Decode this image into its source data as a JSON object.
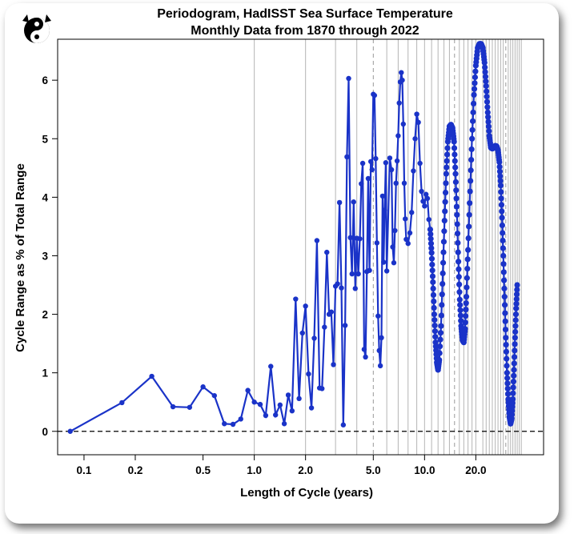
{
  "chart_data": {
    "type": "line",
    "title": "Periodogram, HadISST Sea Surface Temperature",
    "subtitle": "Monthly Data from 1870 through 2022",
    "xlabel": "Length of Cycle (years)",
    "ylabel": "Cycle Range as % of Total Range",
    "x_scale": "log",
    "xlim": [
      0.07,
      50
    ],
    "ylim": [
      -0.4,
      6.7
    ],
    "x_ticks": [
      0.1,
      0.2,
      0.5,
      1.0,
      2.0,
      5.0,
      10.0,
      20.0
    ],
    "x_tick_labels": [
      "0.1",
      "0.2",
      "0.5",
      "1.0",
      "2.0",
      "5.0",
      "10.0",
      "20.0"
    ],
    "y_ticks": [
      0,
      1,
      2,
      3,
      4,
      5,
      6
    ],
    "y_tick_labels": [
      "0",
      "1",
      "2",
      "3",
      "4",
      "5",
      "6"
    ],
    "reference_line_y": 0,
    "color": "#1a33c8",
    "series": [
      {
        "low_period_points": [
          [
            0.083,
            0.0
          ],
          [
            0.167,
            0.49
          ],
          [
            0.25,
            0.94
          ],
          [
            0.333,
            0.42
          ],
          [
            0.417,
            0.41
          ],
          [
            0.5,
            0.76
          ],
          [
            0.583,
            0.61
          ],
          [
            0.667,
            0.13
          ],
          [
            0.75,
            0.12
          ],
          [
            0.833,
            0.21
          ],
          [
            0.917,
            0.7
          ],
          [
            1.0,
            0.5
          ],
          [
            1.083,
            0.46
          ],
          [
            1.167,
            0.27
          ],
          [
            1.25,
            1.11
          ],
          [
            1.333,
            0.28
          ],
          [
            1.417,
            0.45
          ],
          [
            1.5,
            0.13
          ],
          [
            1.583,
            0.62
          ],
          [
            1.667,
            0.35
          ],
          [
            1.75,
            2.26
          ],
          [
            1.833,
            0.56
          ],
          [
            1.917,
            1.68
          ],
          [
            2.0,
            2.14
          ],
          [
            2.083,
            0.98
          ],
          [
            2.167,
            0.4
          ],
          [
            2.25,
            1.59
          ],
          [
            2.333,
            3.26
          ],
          [
            2.417,
            0.74
          ],
          [
            2.5,
            0.73
          ],
          [
            2.583,
            1.78
          ],
          [
            2.667,
            3.06
          ],
          [
            2.75,
            2.0
          ],
          [
            2.833,
            2.04
          ],
          [
            2.917,
            1.14
          ],
          [
            3.0,
            2.48
          ],
          [
            3.083,
            2.52
          ],
          [
            3.167,
            3.91
          ],
          [
            3.25,
            2.45
          ],
          [
            3.333,
            0.11
          ],
          [
            3.417,
            1.81
          ],
          [
            3.5,
            4.69
          ],
          [
            3.583,
            6.03
          ],
          [
            3.667,
            3.31
          ],
          [
            3.75,
            2.69
          ],
          [
            3.833,
            3.92
          ],
          [
            3.917,
            2.44
          ],
          [
            4.0,
            3.3
          ],
          [
            4.083,
            2.69
          ],
          [
            4.167,
            3.29
          ],
          [
            4.25,
            4.23
          ],
          [
            4.333,
            4.58
          ],
          [
            4.417,
            1.4
          ],
          [
            4.5,
            1.27
          ],
          [
            4.583,
            2.73
          ],
          [
            4.667,
            4.32
          ],
          [
            4.75,
            2.75
          ],
          [
            4.833,
            4.61
          ],
          [
            4.917,
            4.47
          ],
          [
            5.0,
            5.76
          ],
          [
            5.083,
            5.74
          ],
          [
            5.167,
            4.66
          ],
          [
            5.25,
            3.22
          ],
          [
            5.333,
            1.97
          ],
          [
            5.417,
            1.38
          ],
          [
            5.5,
            1.12
          ],
          [
            5.583,
            1.6
          ],
          [
            5.667,
            4.02
          ],
          [
            5.75,
            2.89
          ],
          [
            5.833,
            3.78
          ],
          [
            5.917,
            4.59
          ],
          [
            6.0,
            2.74
          ],
          [
            6.25,
            4.67
          ],
          [
            6.4,
            4.47
          ],
          [
            6.5,
            3.15
          ],
          [
            6.6,
            2.88
          ],
          [
            6.7,
            3.43
          ],
          [
            6.8,
            4.24
          ],
          [
            6.9,
            4.62
          ],
          [
            7.0,
            5.05
          ],
          [
            7.1,
            5.61
          ],
          [
            7.2,
            5.97
          ],
          [
            7.3,
            6.13
          ],
          [
            7.4,
            6.0
          ],
          [
            7.5,
            5.25
          ],
          [
            7.6,
            4.24
          ],
          [
            7.7,
            3.63
          ],
          [
            7.8,
            3.28
          ],
          [
            8.0,
            3.21
          ],
          [
            8.2,
            3.39
          ],
          [
            8.4,
            3.74
          ],
          [
            8.6,
            4.45
          ],
          [
            8.8,
            5.0
          ],
          [
            9.0,
            5.42
          ],
          [
            9.2,
            5.28
          ],
          [
            9.4,
            4.58
          ],
          [
            9.6,
            4.1
          ],
          [
            9.8,
            3.93
          ],
          [
            10.0,
            3.85
          ],
          [
            10.2,
            4.05
          ],
          [
            10.4,
            3.98
          ],
          [
            10.6,
            3.62
          ]
        ],
        "oscillation_points": [
          [
            10.8,
            3.45
          ],
          [
            11.0,
            3.05
          ],
          [
            11.2,
            2.55
          ],
          [
            11.4,
            2.0
          ],
          [
            11.6,
            1.52
          ],
          [
            11.8,
            1.18
          ],
          [
            12.0,
            1.05
          ],
          [
            12.2,
            1.22
          ],
          [
            12.5,
            1.8
          ],
          [
            12.8,
            2.7
          ],
          [
            13.1,
            3.6
          ],
          [
            13.4,
            4.4
          ],
          [
            13.7,
            4.95
          ],
          [
            14.0,
            5.21
          ],
          [
            14.3,
            5.24
          ],
          [
            14.6,
            5.18
          ],
          [
            14.9,
            4.95
          ],
          [
            15.2,
            4.4
          ],
          [
            15.5,
            3.7
          ],
          [
            15.8,
            2.9
          ],
          [
            16.1,
            2.25
          ],
          [
            16.4,
            1.8
          ],
          [
            16.7,
            1.56
          ],
          [
            17.0,
            1.52
          ],
          [
            17.3,
            1.75
          ],
          [
            17.6,
            2.3
          ],
          [
            18.0,
            3.1
          ],
          [
            18.5,
            4.1
          ],
          [
            19.0,
            5.0
          ],
          [
            19.5,
            5.75
          ],
          [
            20.0,
            6.25
          ],
          [
            20.5,
            6.55
          ],
          [
            21.0,
            6.62
          ],
          [
            21.5,
            6.62
          ],
          [
            22.0,
            6.55
          ],
          [
            22.5,
            6.3
          ],
          [
            23.0,
            5.9
          ],
          [
            23.5,
            5.45
          ],
          [
            24.0,
            5.05
          ],
          [
            24.5,
            4.85
          ],
          [
            25.0,
            4.83
          ],
          [
            25.5,
            4.85
          ],
          [
            26.0,
            4.88
          ],
          [
            26.5,
            4.87
          ],
          [
            27.0,
            4.8
          ],
          [
            27.5,
            4.6
          ],
          [
            28.0,
            4.2
          ],
          [
            28.5,
            3.65
          ],
          [
            29.0,
            3.0
          ],
          [
            29.5,
            2.3
          ],
          [
            30.0,
            1.6
          ],
          [
            30.5,
            1.0
          ],
          [
            31.0,
            0.55
          ],
          [
            31.5,
            0.25
          ],
          [
            32.0,
            0.13
          ],
          [
            32.5,
            0.22
          ],
          [
            33.0,
            0.55
          ],
          [
            33.5,
            1.05
          ],
          [
            34.0,
            1.6
          ],
          [
            34.5,
            2.1
          ],
          [
            35.0,
            2.5
          ]
        ]
      }
    ],
    "vertical_gridlines_solid": [
      1.0,
      2.0,
      3.0,
      4.0,
      6.0,
      7.0,
      8.0,
      9.0,
      10.0,
      11.0,
      12.0,
      13.0,
      14.0,
      16.0,
      17.0,
      18.0,
      19.0,
      20.0,
      22.0,
      23.0,
      24.0,
      25.0,
      26.0,
      27.0,
      28.0,
      29.0,
      31.0,
      32.0,
      33.0,
      34.0,
      35.0,
      36.0,
      37.0
    ],
    "vertical_gridlines_dashed": [
      5.0,
      15.0,
      30.0
    ]
  }
}
